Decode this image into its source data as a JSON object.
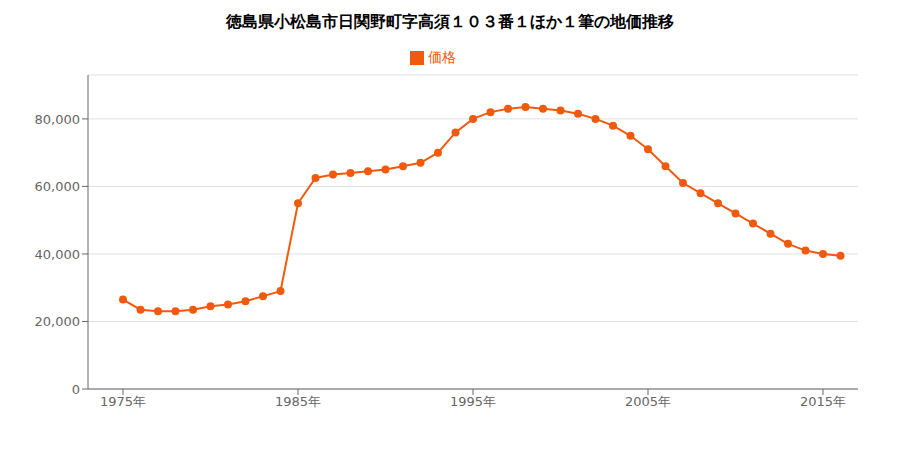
{
  "chart_data": {
    "type": "line",
    "title": "徳島県小松島市日関野町字高須１０３番１ほか１筆の地価推移",
    "x": [
      1975,
      1976,
      1977,
      1978,
      1979,
      1980,
      1981,
      1982,
      1983,
      1984,
      1985,
      1986,
      1987,
      1988,
      1989,
      1990,
      1991,
      1992,
      1993,
      1994,
      1995,
      1996,
      1997,
      1998,
      1999,
      2000,
      2001,
      2002,
      2003,
      2004,
      2005,
      2006,
      2007,
      2008,
      2009,
      2010,
      2011,
      2012,
      2013,
      2014,
      2015,
      2016
    ],
    "series": [
      {
        "name": "価格",
        "color": "#f05a0e",
        "marker": "circle",
        "values": [
          26500,
          23500,
          23000,
          23000,
          23500,
          24500,
          25000,
          26000,
          27500,
          29000,
          55000,
          62500,
          63500,
          64000,
          64500,
          65000,
          66000,
          67000,
          70000,
          76000,
          80000,
          82000,
          83000,
          83500,
          83000,
          82500,
          81500,
          80000,
          78000,
          75000,
          71000,
          66000,
          61000,
          58000,
          55000,
          52000,
          49000,
          46000,
          43000,
          41000,
          40000,
          39500
        ]
      }
    ],
    "xlim": [
      1973,
      2017
    ],
    "xticks": [
      {
        "value": 1975,
        "label": "1975年"
      },
      {
        "value": 1985,
        "label": "1985年"
      },
      {
        "value": 1995,
        "label": "1995年"
      },
      {
        "value": 2005,
        "label": "2005年"
      },
      {
        "value": 2015,
        "label": "2015年"
      }
    ],
    "ylim": [
      0,
      93000
    ],
    "yticks": [
      0,
      {
        "value": 20000,
        "label": "20,000"
      },
      {
        "value": 40000,
        "label": "40,000"
      },
      {
        "value": 60000,
        "label": "60,000"
      },
      {
        "value": 80000,
        "label": "80,000"
      }
    ],
    "grid": "y",
    "legend": "top"
  }
}
